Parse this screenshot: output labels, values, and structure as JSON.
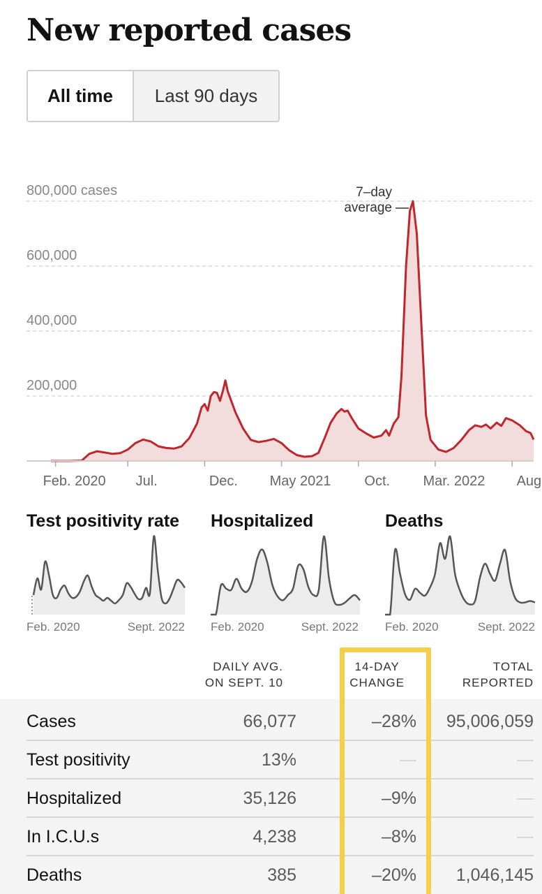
{
  "page_title": "New reported cases",
  "toggle": {
    "all_time": "All time",
    "last_90": "Last 90 days"
  },
  "colors": {
    "line": "#c0262c",
    "fill": "#f3dcdc",
    "highlight": "#f6cf4a",
    "mini_line": "#555555",
    "mini_fill": "#ececec"
  },
  "chart_data": [
    {
      "type": "area",
      "title": "",
      "series": [
        {
          "name": "7–day average"
        }
      ],
      "annotation": "7–day\naverage",
      "ylim": [
        0,
        800000
      ],
      "y_ticks": [
        {
          "value": 800000,
          "label": "800,000 cases"
        },
        {
          "value": 600000,
          "label": "600,000"
        },
        {
          "value": 400000,
          "label": "400,000"
        },
        {
          "value": 200000,
          "label": "200,000"
        }
      ],
      "x_ticks": [
        {
          "t": 0.3,
          "label": "Feb. 2020"
        },
        {
          "t": 5.0,
          "label": "Jul."
        },
        {
          "t": 10.0,
          "label": "Dec."
        },
        {
          "t": 15.0,
          "label": "May 2021"
        },
        {
          "t": 20.0,
          "label": "Oct."
        },
        {
          "t": 25.0,
          "label": "Mar. 2022"
        },
        {
          "t": 30.0,
          "label": "Aug."
        }
      ],
      "x_unit": "months since Feb. 2020",
      "points": [
        [
          0,
          0
        ],
        [
          1.2,
          0
        ],
        [
          2,
          1000
        ],
        [
          2.5,
          22000
        ],
        [
          3,
          30000
        ],
        [
          3.5,
          26000
        ],
        [
          4,
          22000
        ],
        [
          4.5,
          24000
        ],
        [
          5,
          35000
        ],
        [
          5.5,
          55000
        ],
        [
          6,
          66000
        ],
        [
          6.5,
          60000
        ],
        [
          7,
          45000
        ],
        [
          7.5,
          40000
        ],
        [
          8,
          38000
        ],
        [
          8.5,
          45000
        ],
        [
          9,
          70000
        ],
        [
          9.5,
          115000
        ],
        [
          9.8,
          165000
        ],
        [
          10,
          175000
        ],
        [
          10.2,
          155000
        ],
        [
          10.4,
          200000
        ],
        [
          10.6,
          212000
        ],
        [
          10.8,
          210000
        ],
        [
          11.0,
          185000
        ],
        [
          11.2,
          218000
        ],
        [
          11.35,
          248000
        ],
        [
          11.5,
          215000
        ],
        [
          12,
          150000
        ],
        [
          12.5,
          100000
        ],
        [
          13,
          65000
        ],
        [
          13.5,
          58000
        ],
        [
          14,
          62000
        ],
        [
          14.5,
          68000
        ],
        [
          15,
          55000
        ],
        [
          15.5,
          33000
        ],
        [
          16,
          18000
        ],
        [
          16.5,
          13000
        ],
        [
          17,
          15000
        ],
        [
          17.4,
          25000
        ],
        [
          17.8,
          70000
        ],
        [
          18.2,
          118000
        ],
        [
          18.6,
          147000
        ],
        [
          18.9,
          160000
        ],
        [
          19.1,
          152000
        ],
        [
          19.3,
          155000
        ],
        [
          19.6,
          130000
        ],
        [
          20,
          100000
        ],
        [
          20.5,
          85000
        ],
        [
          21,
          72000
        ],
        [
          21.5,
          78000
        ],
        [
          21.8,
          95000
        ],
        [
          22,
          78000
        ],
        [
          22.3,
          115000
        ],
        [
          22.6,
          135000
        ],
        [
          22.8,
          260000
        ],
        [
          23.1,
          600000
        ],
        [
          23.35,
          770000
        ],
        [
          23.55,
          800000
        ],
        [
          23.8,
          700000
        ],
        [
          24.1,
          420000
        ],
        [
          24.4,
          140000
        ],
        [
          24.7,
          65000
        ],
        [
          25.2,
          35000
        ],
        [
          25.7,
          28000
        ],
        [
          26.2,
          40000
        ],
        [
          26.7,
          65000
        ],
        [
          27.2,
          95000
        ],
        [
          27.6,
          110000
        ],
        [
          28,
          105000
        ],
        [
          28.3,
          112000
        ],
        [
          28.6,
          100000
        ],
        [
          29,
          118000
        ],
        [
          29.3,
          108000
        ],
        [
          29.6,
          132000
        ],
        [
          30,
          125000
        ],
        [
          30.5,
          110000
        ],
        [
          30.9,
          92000
        ],
        [
          31.2,
          86000
        ],
        [
          31.4,
          66000
        ]
      ]
    },
    {
      "type": "area",
      "title": "Test positivity rate",
      "x_labels": [
        "Feb. 2020",
        "Sept. 2022"
      ],
      "values": [
        0.35,
        0.65,
        0.45,
        0.95,
        0.7,
        0.35,
        0.3,
        0.45,
        0.52,
        0.38,
        0.3,
        0.32,
        0.42,
        0.6,
        0.7,
        0.5,
        0.35,
        0.3,
        0.25,
        0.3,
        0.25,
        0.2,
        0.26,
        0.35,
        0.56,
        0.5,
        0.38,
        0.28,
        0.3,
        0.48,
        0.38,
        1.4,
        0.8,
        0.3,
        0.2,
        0.28,
        0.45,
        0.62,
        0.58,
        0.48
      ]
    },
    {
      "type": "area",
      "title": "Hospitalized",
      "x_labels": [
        "Feb. 2020",
        "Sept. 2022"
      ],
      "values": [
        0.0,
        0.0,
        0.45,
        0.4,
        0.38,
        0.55,
        0.4,
        0.35,
        0.5,
        0.85,
        1.0,
        0.8,
        0.45,
        0.28,
        0.22,
        0.3,
        0.4,
        0.75,
        0.7,
        0.42,
        0.3,
        0.38,
        1.2,
        0.55,
        0.2,
        0.15,
        0.18,
        0.25,
        0.3,
        0.22
      ]
    },
    {
      "type": "area",
      "title": "Deaths",
      "x_labels": [
        "Feb. 2020",
        "Sept. 2022"
      ],
      "values": [
        0.0,
        0.0,
        0.95,
        0.6,
        0.3,
        0.22,
        0.38,
        0.32,
        0.28,
        0.4,
        0.6,
        1.05,
        0.82,
        1.15,
        0.6,
        0.35,
        0.2,
        0.15,
        0.2,
        0.55,
        0.75,
        0.6,
        0.5,
        0.75,
        0.95,
        0.5,
        0.25,
        0.18,
        0.18,
        0.2,
        0.18
      ]
    }
  ],
  "table": {
    "headers": {
      "daily_avg": [
        "DAILY AVG.",
        "ON SEPT. 10"
      ],
      "change": [
        "14-DAY",
        "CHANGE"
      ],
      "total": [
        "TOTAL",
        "REPORTED"
      ]
    },
    "rows": [
      {
        "label": "Cases",
        "daily_avg": "66,077",
        "change": "–28%",
        "total": "95,006,059"
      },
      {
        "label": "Test positivity",
        "daily_avg": "13%",
        "change": "",
        "total": ""
      },
      {
        "label": "Hospitalized",
        "daily_avg": "35,126",
        "change": "–9%",
        "total": ""
      },
      {
        "label": "In I.C.U.s",
        "daily_avg": "4,238",
        "change": "–8%",
        "total": ""
      },
      {
        "label": "Deaths",
        "daily_avg": "385",
        "change": "–20%",
        "total": "1,046,145"
      }
    ]
  }
}
